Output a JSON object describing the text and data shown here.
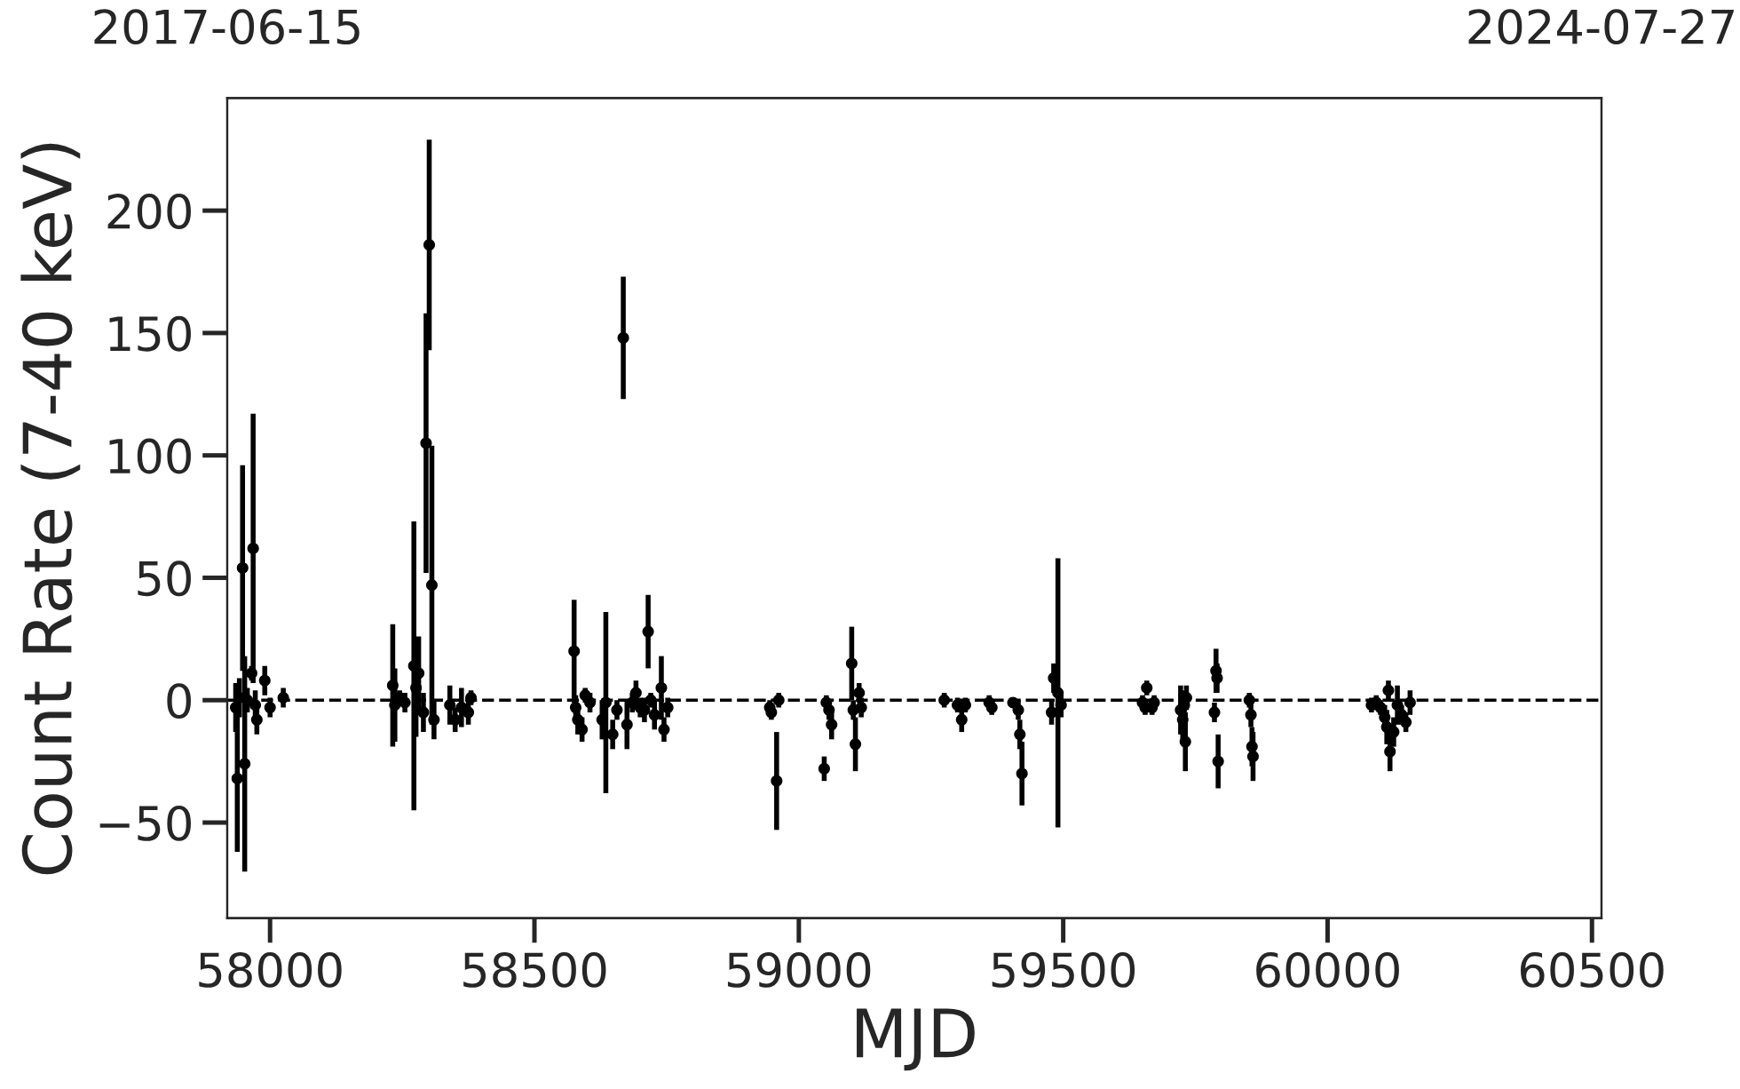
{
  "chart_data": {
    "type": "scatter",
    "xlabel": "MJD",
    "ylabel": "Count Rate (7-40 keV)",
    "xlim": [
      57919,
      60518
    ],
    "xticks": [
      58000,
      58500,
      59000,
      59500,
      60000,
      60500
    ],
    "ylim": [
      -89,
      246
    ],
    "yticks": [
      {
        "value": -50,
        "label": "−50"
      },
      0,
      50,
      100,
      150,
      200
    ],
    "x2lim": [
      "2017-06-15",
      "2024-07-27"
    ],
    "x2ticks": [
      "2017-06-15",
      "2024-07-27"
    ],
    "marker": "circle",
    "grid": false,
    "legend": false,
    "ref_lines": [
      {
        "axis": "y",
        "value": 0,
        "color": "#000000",
        "line_style": "dashed"
      }
    ],
    "series": [
      {
        "color": "#000000",
        "x": [
          57935,
          57938,
          57942,
          57948,
          57952,
          57957,
          57965,
          57968,
          57972,
          57975,
          57990,
          58000,
          58025,
          58232,
          58236,
          58245,
          58255,
          58272,
          58276,
          58281,
          58290,
          58295,
          58301,
          58306,
          58310,
          58340,
          58350,
          58362,
          58375,
          58380,
          58575,
          58578,
          58582,
          58590,
          58596,
          58605,
          58628,
          58635,
          58648,
          58656,
          58668,
          58675,
          58685,
          58692,
          58700,
          58708,
          58715,
          58720,
          58727,
          58740,
          58745,
          58752,
          58945,
          58948,
          58958,
          58962,
          59048,
          59052,
          59057,
          59062,
          59100,
          59103,
          59107,
          59114,
          59118,
          59275,
          59300,
          59308,
          59315,
          59360,
          59365,
          59405,
          59415,
          59418,
          59422,
          59478,
          59482,
          59490,
          59496,
          59650,
          59655,
          59658,
          59668,
          59672,
          59722,
          59726,
          59729,
          59731,
          59733,
          59786,
          59789,
          59791,
          59793,
          59852,
          59855,
          59857,
          59859,
          60083,
          60092,
          60100,
          60108,
          60112,
          60115,
          60118,
          60125,
          60132,
          60140,
          60148,
          60156
        ],
        "values": [
          -3,
          -32,
          1,
          54,
          -26,
          0,
          11,
          62,
          -2,
          -8,
          8,
          -3,
          1,
          6,
          -2,
          1,
          -1,
          14,
          5,
          11,
          -5,
          105,
          186,
          47,
          -8,
          -2,
          -8,
          -3,
          -5,
          1,
          20,
          -3,
          -8,
          -12,
          2,
          -1,
          -8,
          -1,
          -14,
          -4,
          148,
          -10,
          -1,
          3,
          -3,
          -4,
          28,
          0,
          -6,
          5,
          -12,
          -3,
          -3,
          -5,
          -33,
          0,
          -28,
          -1,
          -4,
          -10,
          15,
          -4,
          -18,
          3,
          -3,
          0,
          -2,
          -8,
          -2,
          -1,
          -3,
          -1,
          -4,
          -14,
          -30,
          -5,
          9,
          3,
          -2,
          -1,
          -3,
          5,
          -3,
          -1,
          -4,
          -8,
          -2,
          -17,
          1,
          -5,
          12,
          9,
          -25,
          0,
          -6,
          -19,
          -23,
          -2,
          -1,
          -3,
          -7,
          -11,
          4,
          -21,
          -13,
          -2,
          -6,
          -9,
          -1
        ],
        "errors": [
          10,
          30,
          8,
          42,
          44,
          5,
          3,
          55,
          6,
          6,
          6,
          4,
          4,
          25,
          15,
          3,
          4,
          59,
          20,
          15,
          8,
          53,
          43,
          57,
          8,
          8,
          5,
          8,
          5,
          3,
          21,
          5,
          6,
          5,
          3,
          4,
          8,
          37,
          6,
          4,
          25,
          10,
          4,
          5,
          4,
          5,
          15,
          3,
          6,
          13,
          5,
          4,
          3,
          3,
          20,
          3,
          5,
          3,
          4,
          6,
          15,
          4,
          11,
          4,
          4,
          3,
          3,
          5,
          3,
          3,
          3,
          2,
          4,
          6,
          13,
          5,
          6,
          55,
          5,
          3,
          3,
          3,
          3,
          3,
          10,
          8,
          6,
          12,
          5,
          4,
          9,
          6,
          11,
          3,
          5,
          8,
          10,
          3,
          3,
          3,
          5,
          7,
          4,
          8,
          6,
          8,
          4,
          4,
          5
        ]
      }
    ]
  }
}
